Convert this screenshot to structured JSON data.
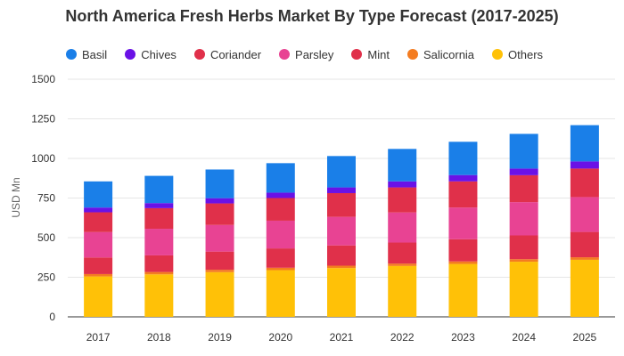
{
  "chart_data": {
    "type": "bar",
    "stacked": true,
    "title": "North America Fresh Herbs Market By Type Forecast (2017-2025)",
    "xlabel": "",
    "ylabel": "USD Mn",
    "ylim": [
      0,
      1500
    ],
    "yticks": [
      0,
      250,
      500,
      750,
      1000,
      1250,
      1500
    ],
    "grid": true,
    "legend": "top-left",
    "categories": [
      "2017",
      "2018",
      "2019",
      "2020",
      "2021",
      "2022",
      "2023",
      "2024",
      "2025"
    ],
    "series": [
      {
        "name": "Others",
        "color": "#FFC107",
        "values": [
          255,
          268,
          282,
          295,
          308,
          321,
          334,
          348,
          360
        ]
      },
      {
        "name": "Salicornia",
        "color": "#F47C20",
        "values": [
          15,
          15,
          15,
          15,
          15,
          15,
          16,
          16,
          16
        ]
      },
      {
        "name": "Mint",
        "color": "#E0304A",
        "values": [
          105,
          105,
          115,
          122,
          128,
          133,
          140,
          150,
          160
        ]
      },
      {
        "name": "Parsley",
        "color": "#E84393",
        "values": [
          160,
          168,
          168,
          175,
          180,
          190,
          200,
          210,
          220
        ]
      },
      {
        "name": "Coriander",
        "color": "#E0304A",
        "values": [
          125,
          130,
          136,
          143,
          150,
          158,
          165,
          170,
          180
        ]
      },
      {
        "name": "Chives",
        "color": "#6A11E6",
        "values": [
          30,
          32,
          33,
          34,
          36,
          38,
          40,
          42,
          45
        ]
      },
      {
        "name": "Basil",
        "color": "#1A7FE8",
        "values": [
          165,
          172,
          181,
          186,
          198,
          205,
          210,
          219,
          229
        ]
      }
    ]
  },
  "legend": [
    {
      "label": "Basil",
      "color": "#1A7FE8"
    },
    {
      "label": "Chives",
      "color": "#6A11E6"
    },
    {
      "label": "Coriander",
      "color": "#E0304A"
    },
    {
      "label": "Parsley",
      "color": "#E84393"
    },
    {
      "label": "Mint",
      "color": "#E0304A"
    },
    {
      "label": "Salicornia",
      "color": "#F47C20"
    },
    {
      "label": "Others",
      "color": "#FFC107"
    }
  ]
}
